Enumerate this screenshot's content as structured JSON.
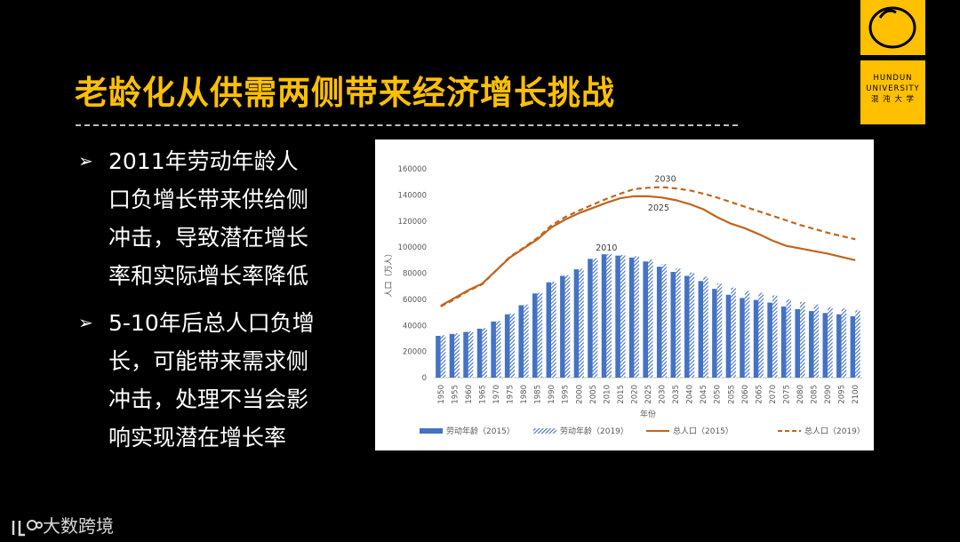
{
  "title": "老龄化从供需两侧带来经济增长挑战",
  "bullets": [
    {
      "marker": "➢",
      "lines": [
        "2011年劳动年龄人",
        "口负增长带来供给侧",
        "冲击，导致潜在增长",
        "率和实际增长率降低"
      ]
    },
    {
      "marker": "➢",
      "lines": [
        "5-10年后总人口负增",
        "长，可能带来需求侧",
        "冲击，处理不当会影",
        "响实现潜在增长率"
      ]
    }
  ],
  "logo": {
    "lines": [
      "HUNDUN",
      "UNIVERSITY",
      "混 沌 大 学"
    ]
  },
  "watermark": "大数跨境",
  "chart_data": {
    "type": "bar-line",
    "y_label": "人口（万人）",
    "x_label": "年份",
    "categories": [
      "1950",
      "1955",
      "1960",
      "1965",
      "1970",
      "1975",
      "1980",
      "1985",
      "1990",
      "1995",
      "2000",
      "2005",
      "2010",
      "2015",
      "2020",
      "2025",
      "2030",
      "2035",
      "2040",
      "2045",
      "2050",
      "2055",
      "2060",
      "2065",
      "2070",
      "2075",
      "2080",
      "2085",
      "2090",
      "2095",
      "2100"
    ],
    "series": [
      {
        "name": "劳动年龄（2015）",
        "kind": "bar",
        "color": "#4472c4",
        "values": [
          32000,
          33500,
          35000,
          37500,
          43000,
          48500,
          55500,
          64500,
          73000,
          78000,
          83000,
          91000,
          94500,
          93500,
          92000,
          89000,
          85000,
          81000,
          78000,
          74000,
          68000,
          63500,
          61000,
          59500,
          57500,
          54500,
          52500,
          51000,
          49500,
          48500,
          47000
        ]
      },
      {
        "name": "劳动年龄（2019）",
        "kind": "hatched-bar",
        "color": "#4472c4",
        "values": [
          32500,
          34000,
          35500,
          38000,
          43500,
          49000,
          56000,
          65000,
          73500,
          78500,
          83500,
          91500,
          94500,
          94000,
          93000,
          90500,
          87000,
          83500,
          80500,
          77500,
          72000,
          69000,
          66500,
          65000,
          63000,
          60000,
          58000,
          56000,
          54000,
          53000,
          51500
        ]
      },
      {
        "name": "总人口（2015）",
        "kind": "line",
        "color": "#c0651f",
        "values": [
          55000,
          61000,
          67000,
          72000,
          82000,
          92000,
          99000,
          106000,
          115000,
          121000,
          126000,
          130000,
          134000,
          137500,
          139000,
          139000,
          138000,
          136000,
          133000,
          129000,
          123000,
          118000,
          114500,
          110000,
          105000,
          101000,
          99000,
          97000,
          95000,
          92500,
          90000
        ]
      },
      {
        "name": "总人口（2019）",
        "kind": "dashed-line",
        "color": "#c0651f",
        "values": [
          54500,
          60000,
          66500,
          71500,
          82000,
          92500,
          99500,
          107000,
          116500,
          123000,
          128000,
          132500,
          137000,
          141000,
          144500,
          145500,
          146000,
          145000,
          143500,
          141000,
          138000,
          134500,
          131000,
          127500,
          124000,
          120500,
          117000,
          114000,
          111000,
          108500,
          106000
        ]
      }
    ],
    "annotations": [
      "2010",
      "2025",
      "2030"
    ],
    "ylim": [
      0,
      160000
    ],
    "yticks": [
      0,
      20000,
      40000,
      60000,
      80000,
      100000,
      120000,
      140000,
      160000
    ],
    "grid": false
  }
}
